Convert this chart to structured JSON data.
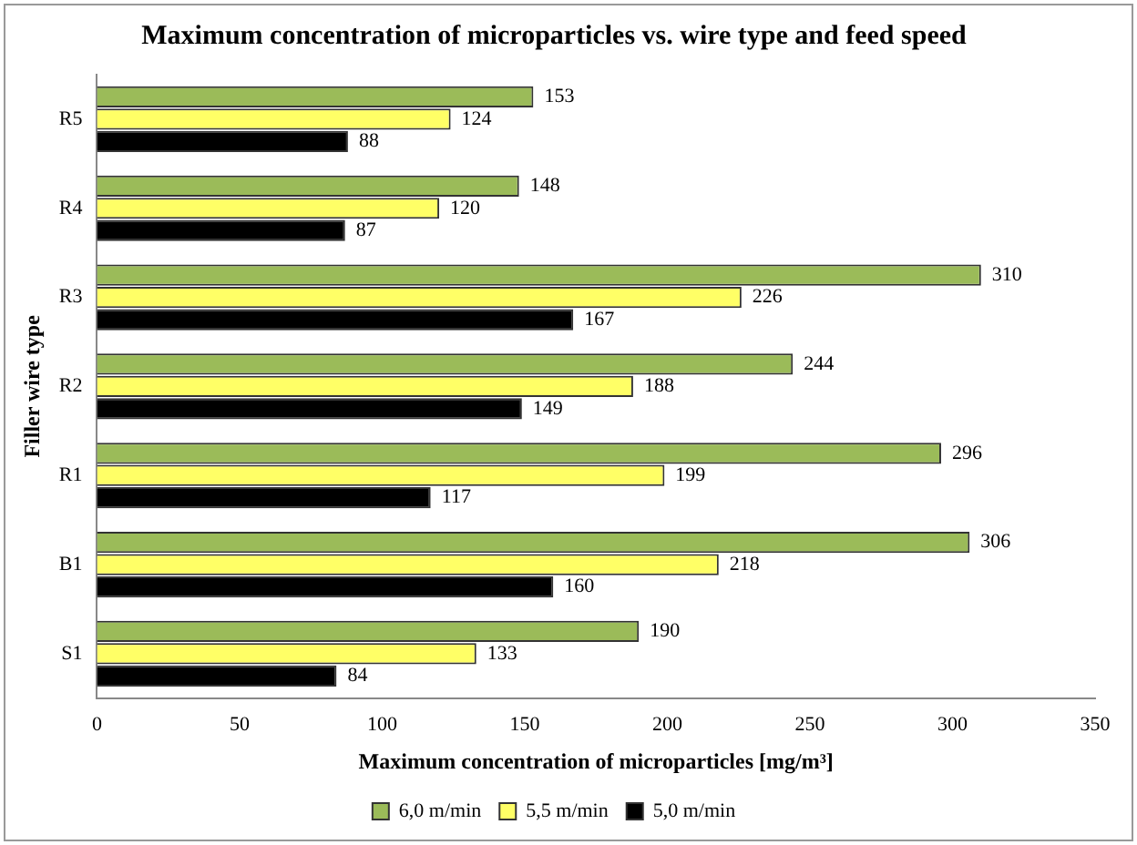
{
  "chart_data": {
    "type": "bar",
    "orientation": "horizontal",
    "title": "Maximum concentration of microparticles vs. wire type and feed speed",
    "xlabel": "Maximum concentration of microparticles [mg/m³]",
    "ylabel": "Filler wire type",
    "categories": [
      "R5",
      "R4",
      "R3",
      "R2",
      "R1",
      "B1",
      "S1"
    ],
    "series": [
      {
        "name": "6,0 m/min",
        "color": "#9bbb59",
        "values": [
          153,
          148,
          310,
          244,
          296,
          306,
          190
        ]
      },
      {
        "name": "5,5 m/min",
        "color": "#ffff66",
        "values": [
          124,
          120,
          226,
          188,
          199,
          218,
          133
        ]
      },
      {
        "name": "5,0 m/min",
        "color": "#000000",
        "values": [
          88,
          87,
          167,
          149,
          117,
          160,
          84
        ]
      }
    ],
    "xlim": [
      0,
      350
    ],
    "xticks": [
      0,
      50,
      100,
      150,
      200,
      250,
      300,
      350
    ],
    "grid": false,
    "legend": "bottom",
    "data_labels": true
  }
}
